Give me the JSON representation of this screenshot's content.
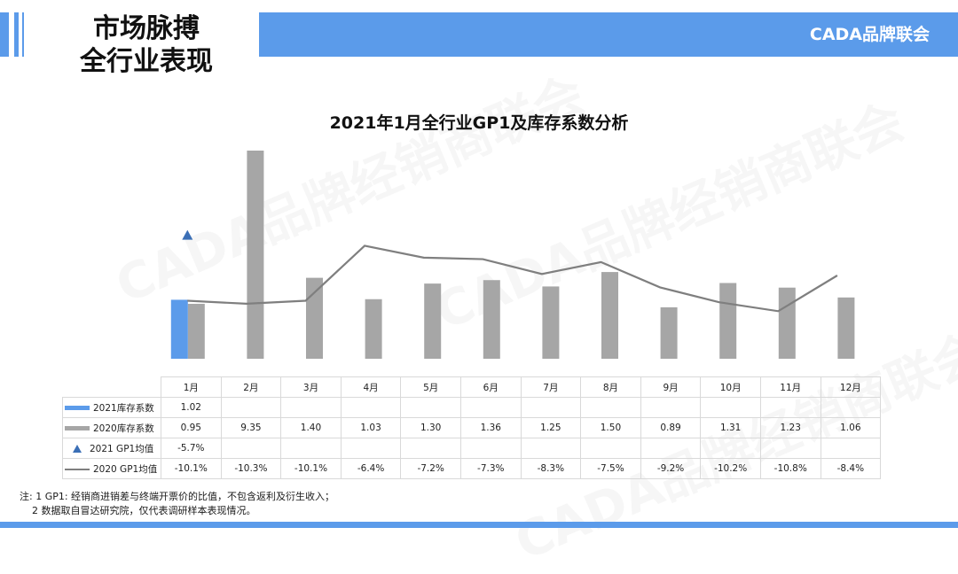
{
  "header": {
    "title_line1": "市场脉搏",
    "title_line2": "全行业表现",
    "brand": "CADA品牌联会"
  },
  "watermark_text": "CADA品牌经销商联会",
  "colors": {
    "accent": "#5b9bea",
    "bar_2021": "#5b9bea",
    "bar_2020": "#a6a6a6",
    "line_2020": "#7f7f7f",
    "marker_2021": "#3b6fb6"
  },
  "chart_data": {
    "type": "bar",
    "title": "2021年1月全行业GP1及库存系数分析",
    "categories": [
      "1月",
      "2月",
      "3月",
      "4月",
      "5月",
      "6月",
      "7月",
      "8月",
      "9月",
      "10月",
      "11月",
      "12月"
    ],
    "bar_ylim": [
      0,
      3.6
    ],
    "line_ylim": [
      -14,
      0
    ],
    "series": [
      {
        "name": "2021库存系数",
        "kind": "bar",
        "values": [
          1.02,
          null,
          null,
          null,
          null,
          null,
          null,
          null,
          null,
          null,
          null,
          null
        ],
        "labels": [
          "1.02",
          "",
          "",
          "",
          "",
          "",
          "",
          "",
          "",
          "",
          "",
          ""
        ]
      },
      {
        "name": "2020库存系数",
        "kind": "bar",
        "values": [
          0.95,
          9.35,
          1.4,
          1.03,
          1.3,
          1.36,
          1.25,
          1.5,
          0.89,
          1.31,
          1.23,
          1.06
        ],
        "labels": [
          "0.95",
          "9.35",
          "1.40",
          "1.03",
          "1.30",
          "1.36",
          "1.25",
          "1.50",
          "0.89",
          "1.31",
          "1.23",
          "1.06"
        ]
      },
      {
        "name": "2021 GP1均值",
        "kind": "marker",
        "values": [
          -5.7,
          null,
          null,
          null,
          null,
          null,
          null,
          null,
          null,
          null,
          null,
          null
        ],
        "labels": [
          "-5.7%",
          "",
          "",
          "",
          "",
          "",
          "",
          "",
          "",
          "",
          "",
          ""
        ]
      },
      {
        "name": "2020 GP1均值",
        "kind": "line",
        "values": [
          -10.1,
          -10.3,
          -10.1,
          -6.4,
          -7.2,
          -7.3,
          -8.3,
          -7.5,
          -9.2,
          -10.2,
          -10.8,
          -8.4
        ],
        "labels": [
          "-10.1%",
          "-10.3%",
          "-10.1%",
          "-6.4%",
          "-7.2%",
          "-7.3%",
          "-8.3%",
          "-7.5%",
          "-9.2%",
          "-10.2%",
          "-10.8%",
          "-8.4%"
        ]
      }
    ]
  },
  "notes": {
    "line1": "注: 1 GP1: 经销商进销差与终端开票价的比值，不包含返利及衍生收入；",
    "line2": "2 数据取自冒达研究院，仅代表调研样本表现情况。"
  }
}
